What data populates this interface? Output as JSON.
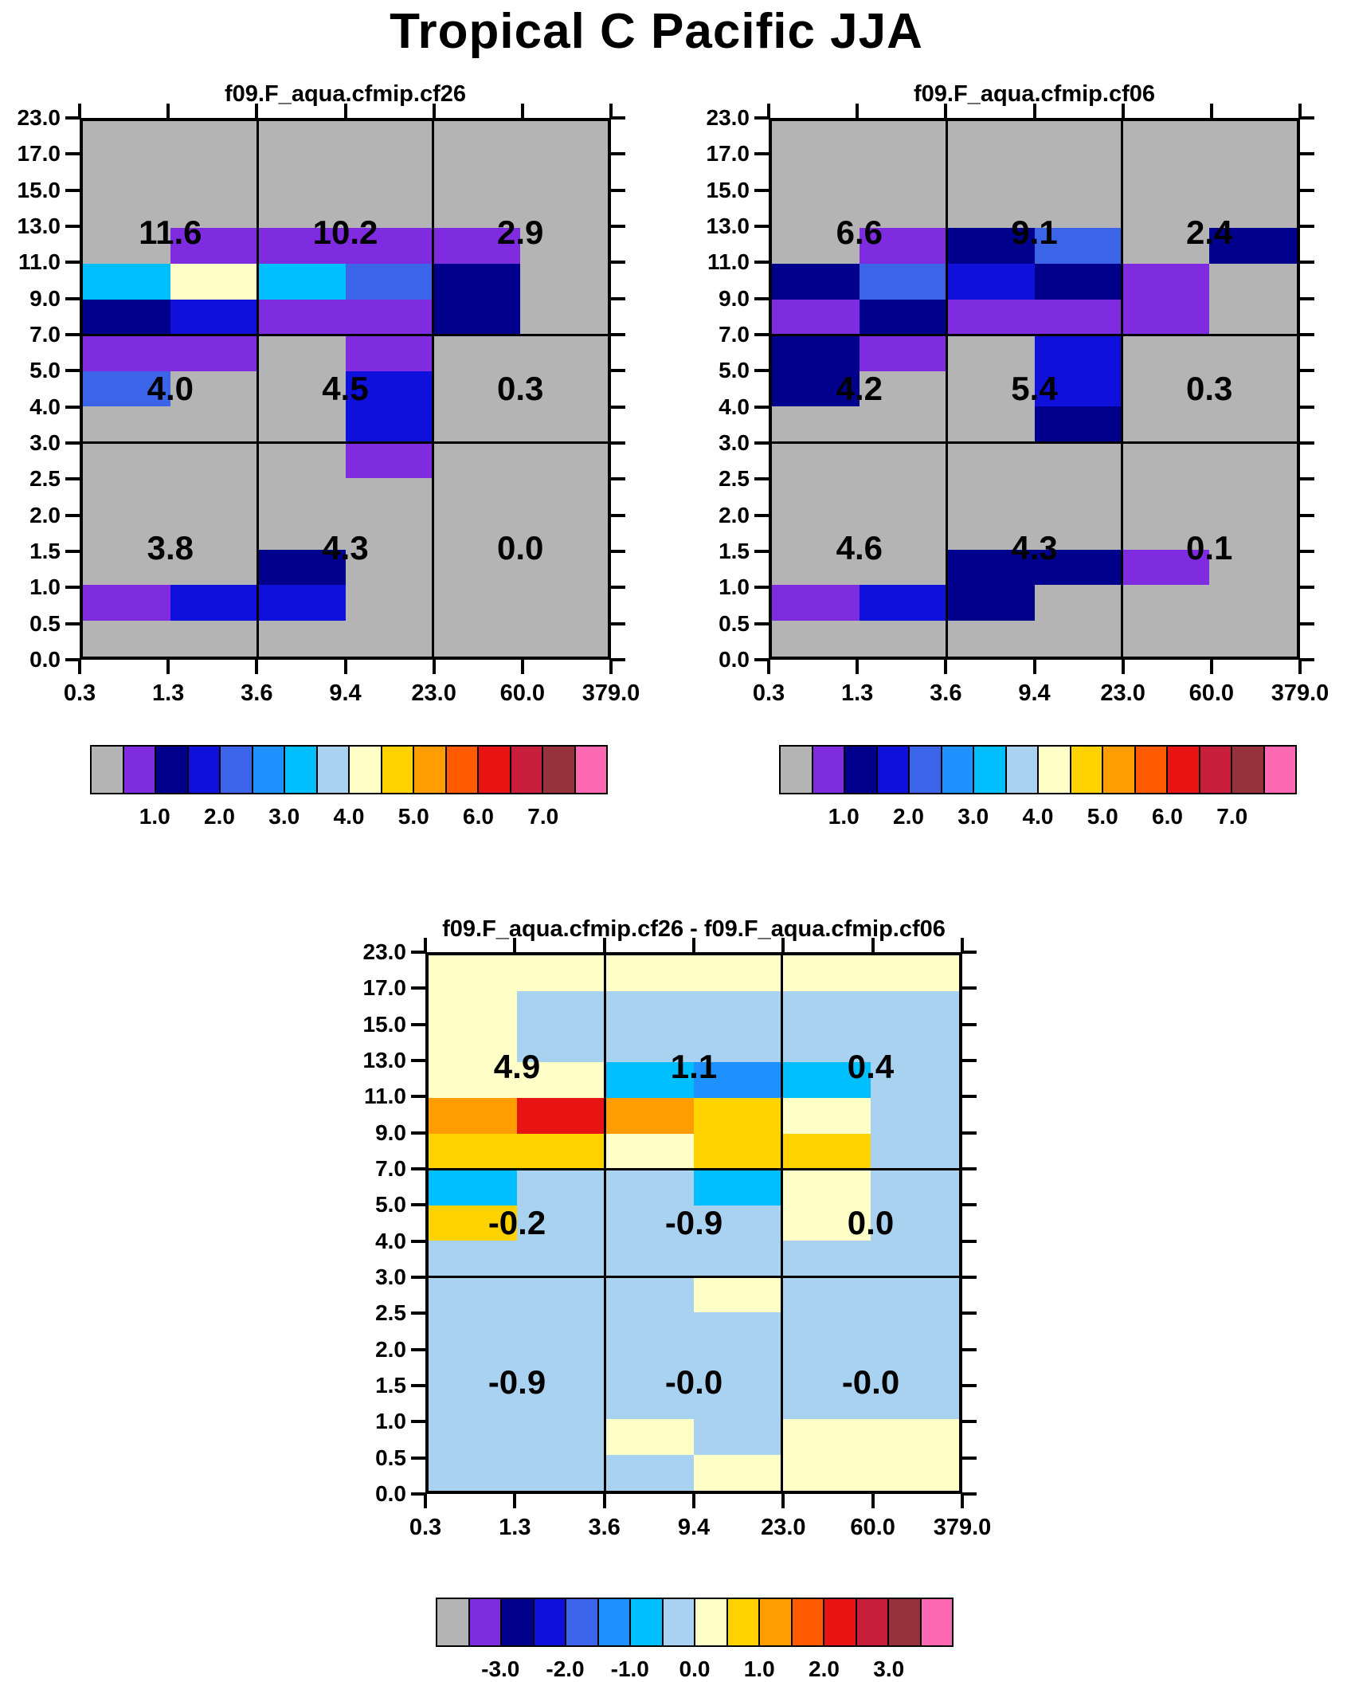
{
  "title": "Tropical C Pacific JJA",
  "chart_data": {
    "type": "heatmap",
    "x_ticks": [
      "0.3",
      "1.3",
      "3.6",
      "9.4",
      "23.0",
      "60.0",
      "379.0"
    ],
    "y_ticks": [
      "23.0",
      "17.0",
      "15.0",
      "13.0",
      "11.0",
      "9.0",
      "7.0",
      "5.0",
      "4.0",
      "3.0",
      "2.5",
      "2.0",
      "1.5",
      "1.0",
      "0.5",
      "0.0"
    ],
    "palette": [
      "#b4b4b4",
      "#7f2be0",
      "#00008c",
      "#1010dc",
      "#3c64e8",
      "#1e90ff",
      "#00bfff",
      "#a8d2f0",
      "#ffffc8",
      "#ffd200",
      "#ff9c00",
      "#ff5a00",
      "#e81414",
      "#c81e3c",
      "#96323c",
      "#ff69b4"
    ],
    "panels": [
      {
        "name": "cf26",
        "title": "f09.F_aqua.cfmip.cf26",
        "values": [
          [
            "11.6",
            "10.2",
            "2.9"
          ],
          [
            "4.0",
            "4.5",
            "0.3"
          ],
          [
            "3.8",
            "4.3",
            "0.0"
          ]
        ],
        "cells": [
          [
            0,
            0,
            0,
            0,
            0,
            0
          ],
          [
            0,
            0,
            0,
            0,
            0,
            0
          ],
          [
            0,
            0,
            0,
            0,
            0,
            0
          ],
          [
            0,
            1,
            1,
            1,
            1,
            0
          ],
          [
            6,
            8,
            6,
            4,
            2,
            0
          ],
          [
            2,
            3,
            1,
            1,
            2,
            0
          ],
          [
            1,
            1,
            0,
            1,
            0,
            0
          ],
          [
            4,
            0,
            0,
            3,
            0,
            0
          ],
          [
            0,
            0,
            0,
            3,
            0,
            0
          ],
          [
            0,
            0,
            0,
            1,
            0,
            0
          ],
          [
            0,
            0,
            0,
            0,
            0,
            0
          ],
          [
            0,
            0,
            0,
            0,
            0,
            0
          ],
          [
            0,
            0,
            2,
            0,
            0,
            0
          ],
          [
            1,
            3,
            3,
            0,
            0,
            0
          ],
          [
            0,
            0,
            0,
            0,
            0,
            0
          ]
        ]
      },
      {
        "name": "cf06",
        "title": "f09.F_aqua.cfmip.cf06",
        "values": [
          [
            "6.6",
            "9.1",
            "2.4"
          ],
          [
            "4.2",
            "5.4",
            "0.3"
          ],
          [
            "4.6",
            "4.3",
            "0.1"
          ]
        ],
        "cells": [
          [
            0,
            0,
            0,
            0,
            0,
            0
          ],
          [
            0,
            0,
            0,
            0,
            0,
            0
          ],
          [
            0,
            0,
            0,
            0,
            0,
            0
          ],
          [
            0,
            1,
            2,
            4,
            0,
            2
          ],
          [
            2,
            4,
            3,
            2,
            1,
            0
          ],
          [
            1,
            2,
            1,
            1,
            1,
            0
          ],
          [
            2,
            1,
            0,
            3,
            0,
            0
          ],
          [
            2,
            0,
            0,
            3,
            0,
            0
          ],
          [
            0,
            0,
            0,
            2,
            0,
            0
          ],
          [
            0,
            0,
            0,
            0,
            0,
            0
          ],
          [
            0,
            0,
            0,
            0,
            0,
            0
          ],
          [
            0,
            0,
            0,
            0,
            0,
            0
          ],
          [
            0,
            0,
            2,
            2,
            1,
            0
          ],
          [
            1,
            3,
            2,
            0,
            0,
            0
          ],
          [
            0,
            0,
            0,
            0,
            0,
            0
          ]
        ]
      },
      {
        "name": "diff",
        "title": "f09.F_aqua.cfmip.cf26 - f09.F_aqua.cfmip.cf06",
        "values": [
          [
            "4.9",
            "1.1",
            "0.4"
          ],
          [
            "-0.2",
            "-0.9",
            "0.0"
          ],
          [
            "-0.9",
            "-0.0",
            "-0.0"
          ]
        ],
        "cells": [
          [
            8,
            8,
            8,
            8,
            8,
            8
          ],
          [
            8,
            7,
            7,
            7,
            7,
            7
          ],
          [
            8,
            7,
            7,
            7,
            7,
            7
          ],
          [
            8,
            8,
            6,
            5,
            6,
            7
          ],
          [
            10,
            12,
            10,
            9,
            8,
            7
          ],
          [
            9,
            9,
            8,
            9,
            9,
            7
          ],
          [
            6,
            7,
            7,
            6,
            8,
            7
          ],
          [
            9,
            7,
            7,
            7,
            8,
            7
          ],
          [
            7,
            7,
            7,
            7,
            7,
            7
          ],
          [
            7,
            7,
            7,
            8,
            7,
            7
          ],
          [
            7,
            7,
            7,
            7,
            7,
            7
          ],
          [
            7,
            7,
            7,
            7,
            7,
            7
          ],
          [
            7,
            7,
            7,
            7,
            7,
            7
          ],
          [
            7,
            7,
            8,
            7,
            8,
            8
          ],
          [
            7,
            7,
            7,
            8,
            8,
            8
          ]
        ]
      }
    ],
    "colorbars": [
      {
        "labels": [
          "1.0",
          "2.0",
          "3.0",
          "4.0",
          "5.0",
          "6.0",
          "7.0"
        ]
      },
      {
        "labels": [
          "1.0",
          "2.0",
          "3.0",
          "4.0",
          "5.0",
          "6.0",
          "7.0"
        ]
      },
      {
        "labels": [
          "-3.0",
          "-2.0",
          "-1.0",
          "0.0",
          "1.0",
          "2.0",
          "3.0"
        ]
      }
    ]
  }
}
